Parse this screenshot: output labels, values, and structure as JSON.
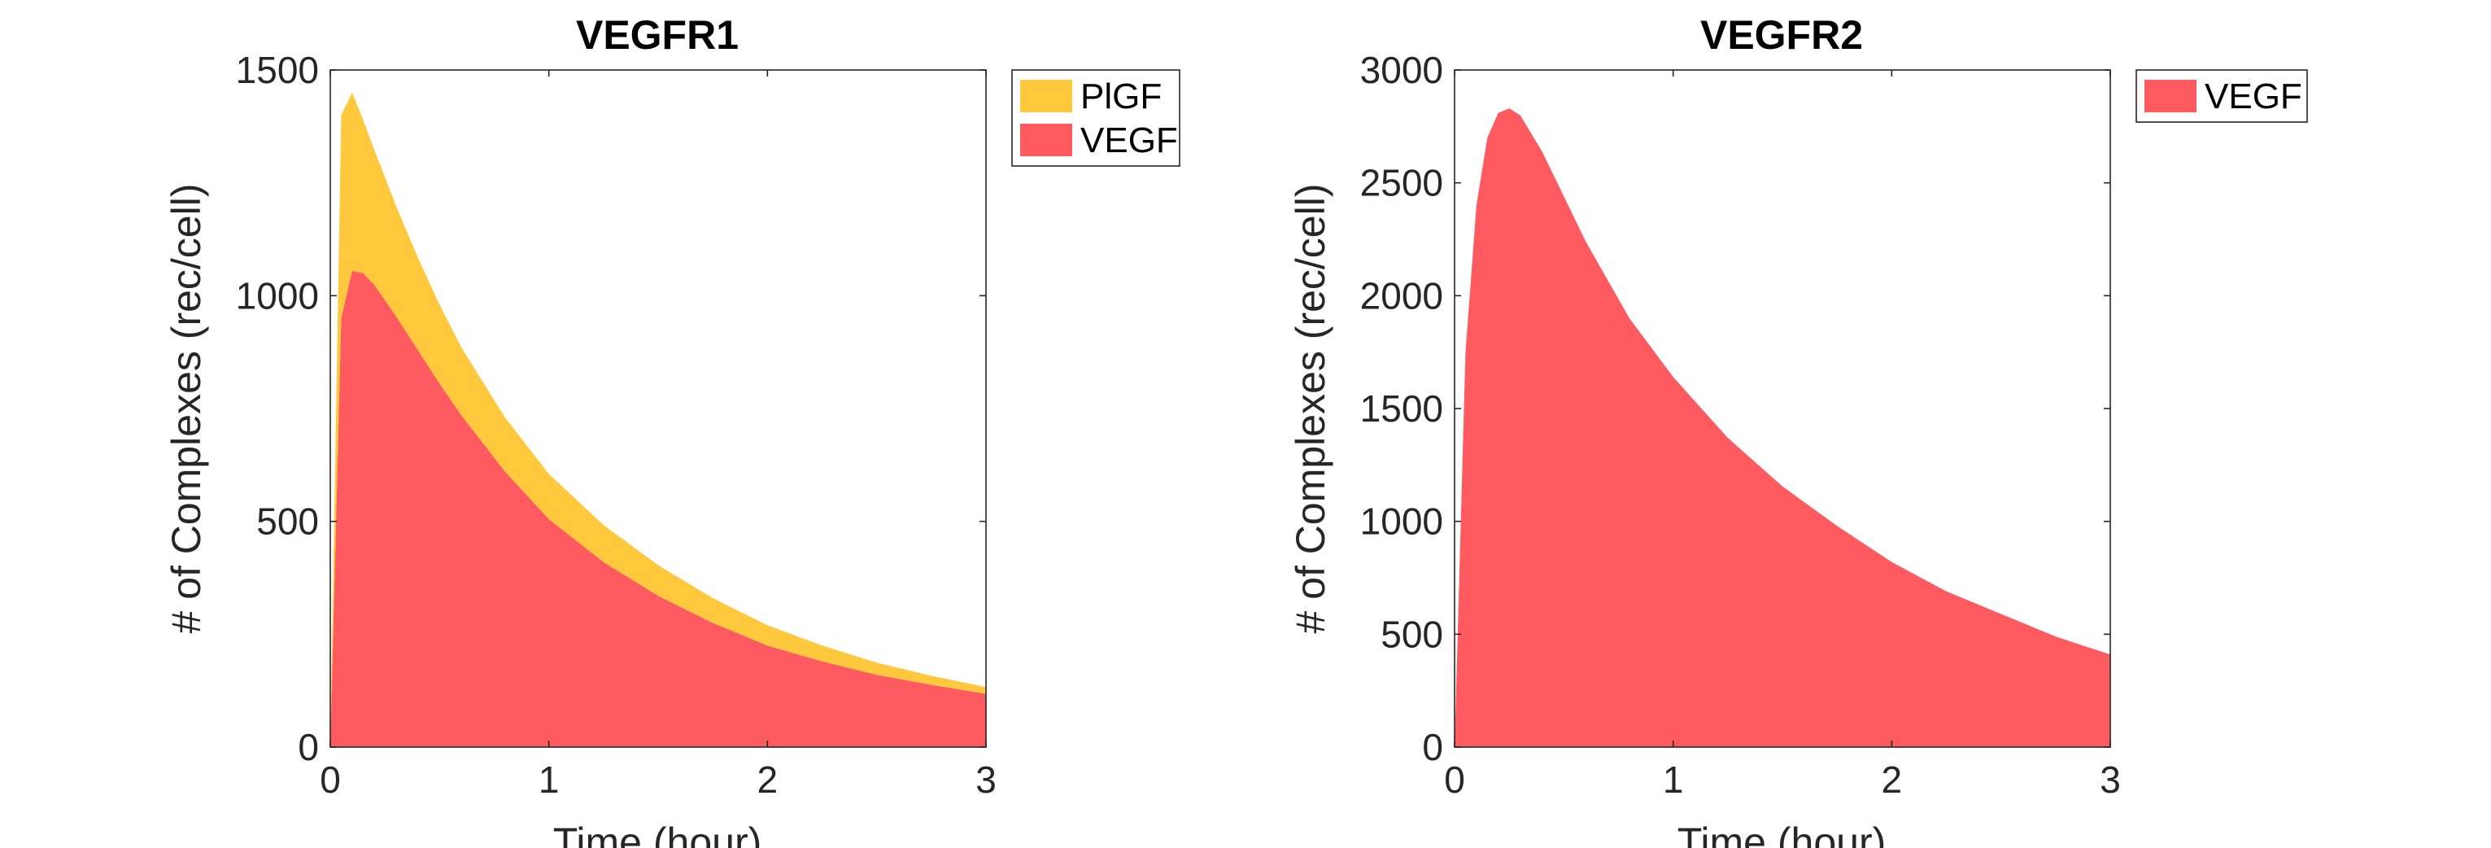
{
  "chart_data": [
    {
      "type": "area",
      "stacked": true,
      "title": "VEGFR1",
      "xlabel": "Time (hour)",
      "ylabel": "# of Complexes (rec/cell)",
      "xlim": [
        0,
        3
      ],
      "ylim": [
        0,
        1500
      ],
      "xticks": [
        "0",
        "1",
        "2",
        "3"
      ],
      "yticks": [
        "0",
        "500",
        "1000",
        "1500"
      ],
      "grid": false,
      "legend_position": "outside-top-right",
      "x": [
        0,
        0.05,
        0.1,
        0.15,
        0.2,
        0.3,
        0.4,
        0.5,
        0.6,
        0.8,
        1.0,
        1.25,
        1.5,
        1.75,
        2.0,
        2.25,
        2.5,
        2.75,
        3.0
      ],
      "series": [
        {
          "name": "VEGF",
          "color": "#FF5A5F",
          "values": [
            0,
            950,
            1055,
            1050,
            1025,
            955,
            880,
            805,
            735,
            610,
            505,
            410,
            335,
            275,
            225,
            190,
            160,
            138,
            118
          ]
        },
        {
          "name": "PlGF",
          "color": "#FFC83D",
          "values": [
            0,
            450,
            395,
            340,
            300,
            245,
            205,
            175,
            150,
            120,
            100,
            82,
            68,
            55,
            45,
            35,
            27,
            20,
            15
          ]
        }
      ],
      "legend": [
        "PlGF",
        "VEGF"
      ]
    },
    {
      "type": "area",
      "title": "VEGFR2",
      "xlabel": "Time (hour)",
      "ylabel": "# of Complexes (rec/cell)",
      "xlim": [
        0,
        3
      ],
      "ylim": [
        0,
        3000
      ],
      "xticks": [
        "0",
        "1",
        "2",
        "3"
      ],
      "yticks": [
        "0",
        "500",
        "1000",
        "1500",
        "2000",
        "2500",
        "3000"
      ],
      "grid": false,
      "legend_position": "outside-top-right",
      "x": [
        0,
        0.05,
        0.1,
        0.15,
        0.2,
        0.25,
        0.3,
        0.4,
        0.5,
        0.6,
        0.8,
        1.0,
        1.25,
        1.5,
        1.75,
        2.0,
        2.25,
        2.5,
        2.75,
        3.0
      ],
      "series": [
        {
          "name": "VEGF",
          "color": "#FF5A5F",
          "values": [
            0,
            1750,
            2400,
            2700,
            2810,
            2830,
            2800,
            2640,
            2440,
            2240,
            1900,
            1640,
            1370,
            1155,
            980,
            820,
            690,
            590,
            490,
            410
          ]
        }
      ],
      "legend": [
        "VEGF"
      ]
    }
  ]
}
